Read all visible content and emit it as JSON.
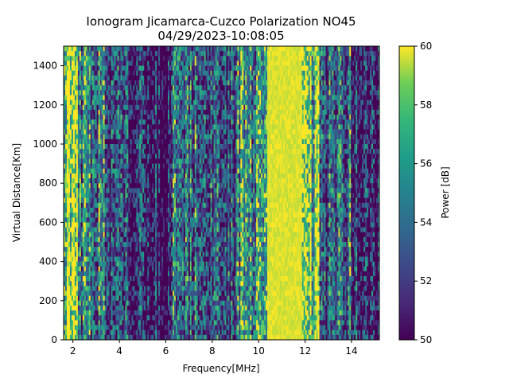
{
  "chart_data": {
    "type": "heatmap",
    "title": "Ionogram Jicamarca-Cuzco Polarization NO45",
    "subtitle": "04/29/2023-10:08:05",
    "xlabel": "Frequency[MHz]",
    "ylabel": "Virtual Distance[Km]",
    "colorbar_label": "Power [dB]",
    "xlim": [
      1.6,
      15.2
    ],
    "ylim": [
      0,
      1500
    ],
    "xticks": [
      2,
      4,
      6,
      8,
      10,
      12,
      14
    ],
    "yticks": [
      0,
      200,
      400,
      600,
      800,
      1000,
      1200,
      1400
    ],
    "clim": [
      50,
      60
    ],
    "cticks": [
      50,
      52,
      54,
      56,
      58,
      60
    ],
    "colormap": "viridis",
    "grid": false,
    "frequency_bands": [
      {
        "x": [
          1.6,
          2.2
        ],
        "mean_power_db": 59
      },
      {
        "x": [
          2.2,
          3.5
        ],
        "mean_power_db": 55
      },
      {
        "x": [
          3.5,
          5.0
        ],
        "mean_power_db": 52
      },
      {
        "x": [
          5.0,
          6.2
        ],
        "mean_power_db": 51
      },
      {
        "x": [
          6.2,
          7.8
        ],
        "mean_power_db": 54
      },
      {
        "x": [
          7.8,
          9.0
        ],
        "mean_power_db": 53
      },
      {
        "x": [
          9.0,
          10.4
        ],
        "mean_power_db": 56
      },
      {
        "x": [
          10.4,
          11.9
        ],
        "mean_power_db": 60
      },
      {
        "x": [
          11.9,
          12.6
        ],
        "mean_power_db": 58
      },
      {
        "x": [
          12.6,
          14.0
        ],
        "mean_power_db": 54
      },
      {
        "x": [
          14.0,
          15.2
        ],
        "mean_power_db": 51
      }
    ]
  }
}
